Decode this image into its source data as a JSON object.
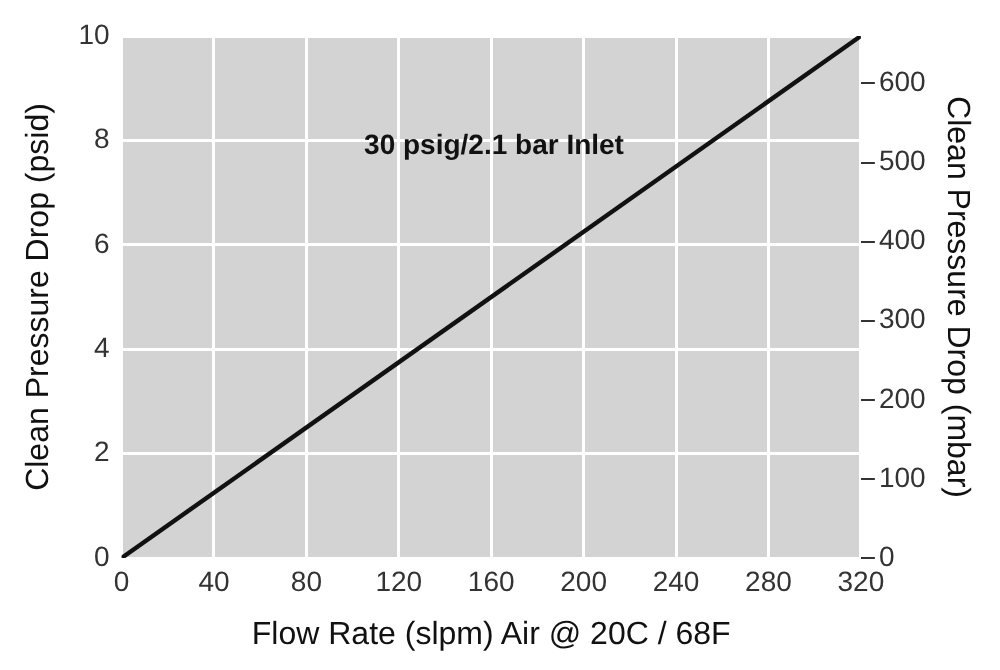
{
  "chart_data": {
    "type": "line",
    "xlabel": "Flow Rate (slpm) Air @ 20C / 68F",
    "ylabel": "Clean Pressure Drop (psid)",
    "y2label": "Clean Pressure Drop (mbar)",
    "x": [
      0,
      320
    ],
    "series": [
      {
        "name": "30 psig/2.1 bar Inlet",
        "color": "#111111",
        "values": [
          0,
          10
        ]
      }
    ],
    "xlim": [
      0,
      320
    ],
    "xticks": [
      0,
      40,
      80,
      120,
      160,
      200,
      240,
      280,
      320
    ],
    "ylim": [
      0,
      10
    ],
    "yticks": [
      0,
      2,
      4,
      6,
      8,
      10
    ],
    "y2lim": [
      0,
      660
    ],
    "y2ticks": [
      0,
      100,
      200,
      300,
      400,
      500,
      600
    ],
    "grid": true,
    "legend": false,
    "marker": "none",
    "line_style": "solid"
  }
}
